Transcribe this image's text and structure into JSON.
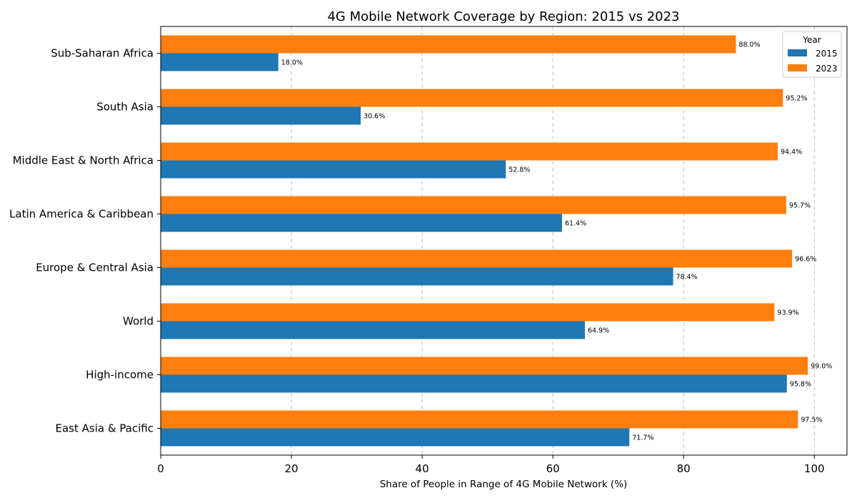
{
  "chart_data": {
    "type": "bar",
    "orientation": "horizontal",
    "title": "4G Mobile Network Coverage by Region: 2015 vs 2023",
    "xlabel": "Share of People in Range of 4G Mobile Network (%)",
    "ylabel": "",
    "xlim": [
      0,
      105
    ],
    "xticks": [
      0,
      20,
      40,
      60,
      80,
      100
    ],
    "grid": "x dashed",
    "legend": {
      "title": "Year",
      "placement": "top-right"
    },
    "categories": [
      "Sub-Saharan Africa",
      "South Asia",
      "Middle East & North Africa",
      "Latin America & Caribbean",
      "Europe & Central Asia",
      "World",
      "High-income",
      "East Asia & Pacific"
    ],
    "series": [
      {
        "name": "2015",
        "color": "#1f77b4",
        "values": [
          18.0,
          30.6,
          52.8,
          61.4,
          78.4,
          64.9,
          95.8,
          71.7
        ]
      },
      {
        "name": "2023",
        "color": "#ff7f0e",
        "values": [
          88.0,
          95.2,
          94.4,
          95.7,
          96.6,
          93.9,
          99.0,
          97.5
        ]
      }
    ],
    "value_labels": {
      "2015": [
        "18.0%",
        "30.6%",
        "52.8%",
        "61.4%",
        "78.4%",
        "64.9%",
        "95.8%",
        "71.7%"
      ],
      "2023": [
        "88.0%",
        "95.2%",
        "94.4%",
        "95.7%",
        "96.6%",
        "93.9%",
        "99.0%",
        "97.5%"
      ]
    }
  }
}
